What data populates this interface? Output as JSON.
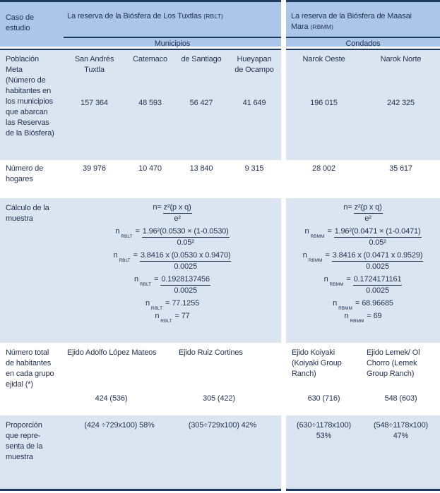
{
  "colors": {
    "navy": "#1e3a63",
    "header-blue": "#abc6e8",
    "row-blue": "#dbe5f2",
    "ink": "#243352"
  },
  "header": {
    "case_label": "Caso de\nestudio",
    "left_group": {
      "title": "La reserva de la Biósfera de Los Tuxtlas",
      "abbr": "(RBLT)",
      "subheader": "Municipios"
    },
    "right_group": {
      "title": "La reserva de la Biósfera de Maasai Mara",
      "abbr": "(RBMM)",
      "subheader": "Condados"
    }
  },
  "rows": {
    "poblacion": {
      "label": "Población\nMeta\n(Número de\nhabitantes en\nlos municipios\nque abarcan\nlas Reservas\nde la Biósfera)",
      "left_columns": [
        "San Andrés\nTuxtla",
        "Catemaco",
        "de Santiago",
        "Hueyapan\nde Ocampo"
      ],
      "left_values": [
        "157 364",
        "48 593",
        "56 427",
        "41 649"
      ],
      "right_columns": [
        "Narok Oeste",
        "Narok Norte"
      ],
      "right_values": [
        "196 015",
        "242 325"
      ]
    },
    "hogares": {
      "label": "Número de\nhogares",
      "left_values": [
        "39 976",
        "10 470",
        "13 840",
        "9 315"
      ],
      "right_values": [
        "28 002",
        "35 617"
      ]
    },
    "calculo": {
      "label": "Cálculo de la\nmuestra",
      "left_lines": [
        {
          "lead": "n=",
          "num": "z²(p x q)",
          "den": "e²"
        },
        {
          "lead": "n",
          "sub": "RBLT",
          "eq": "=",
          "num": "1.96²(0.0530 × (1-0.0530)",
          "den": "0.05²"
        },
        {
          "lead": "n",
          "sub": "RBLT",
          "eq": "=",
          "num": "3.8416 x (0.0530 x 0.9470)",
          "den": "0.0025"
        },
        {
          "lead": "n",
          "sub": "RBLT",
          "eq": "=",
          "num": "0.1928137456",
          "den": "0.0025"
        },
        {
          "lead": "n",
          "sub": "RBLT",
          "eq": "=",
          "value": "77.1255"
        },
        {
          "lead": "n",
          "sub": "RBLT",
          "eq": "=",
          "value": "77"
        }
      ],
      "right_lines": [
        {
          "lead": "n=",
          "num": "z²(p x q)",
          "den": "e²"
        },
        {
          "lead": "n",
          "sub": "RBMM",
          "eq": "=",
          "num": "1.96²(0.0471 × (1-0.0471)",
          "den": "0.05²"
        },
        {
          "lead": "n",
          "sub": "RBMM",
          "eq": "=",
          "num": "3.8416 x (0.0471 x 0.9529)",
          "den": "0.0025"
        },
        {
          "lead": "n",
          "sub": "RBMM",
          "eq": "=",
          "num": "0.1724171161",
          "den": "0.0025"
        },
        {
          "lead": "n",
          "sub": "RBMM",
          "eq": "=",
          "value": "68.96685"
        },
        {
          "lead": "n",
          "sub": "RBMM",
          "eq": "=",
          "value": "69"
        }
      ]
    },
    "ejidal": {
      "label": "Número total\nde habitantes\nen cada grupo\nejidal (*)",
      "cells": [
        {
          "name": "Ejido Adolfo López Mateos",
          "value": "424 (536)"
        },
        {
          "name": "Ejido Ruiz Cortines",
          "value": "305 (422)"
        },
        {
          "name": "Ejido Koiyaki\n(Koiyaki Group\nRanch)",
          "value": "630 (716)"
        },
        {
          "name": "Ejido Lemek/ Ol\nChorro (Lemek\nGroup Ranch)",
          "value": "548 (603)"
        }
      ]
    },
    "proporcion": {
      "label": "Proporción\nque repre-\nsenta de la\nmuestra",
      "cells": [
        "(424 ÷729x100) 58%",
        "(305÷729x100) 42%",
        "(630÷1178x100)\n53%",
        "(548÷1178x100)\n47%"
      ]
    }
  }
}
